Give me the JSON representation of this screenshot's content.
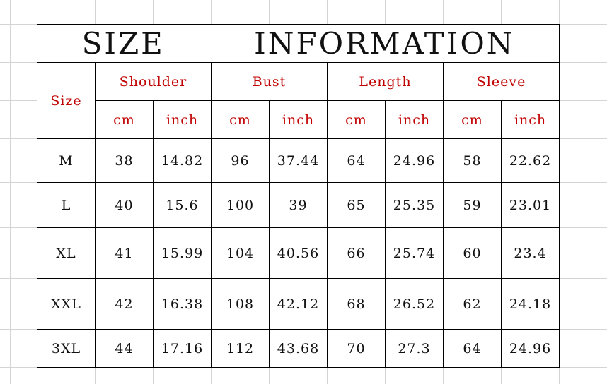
{
  "title": "SIZE INFORMATION",
  "size_header": "Size",
  "groups": [
    "Shoulder",
    "Bust",
    "Length",
    "Sleeve"
  ],
  "units": [
    "cm",
    "inch"
  ],
  "rows": [
    {
      "size": "M",
      "values": [
        "38",
        "14.82",
        "96",
        "37.44",
        "64",
        "24.96",
        "58",
        "22.62"
      ]
    },
    {
      "size": "L",
      "values": [
        "40",
        "15.6",
        "100",
        "39",
        "65",
        "25.35",
        "59",
        "23.01"
      ]
    },
    {
      "size": "XL",
      "values": [
        "41",
        "15.99",
        "104",
        "40.56",
        "66",
        "25.74",
        "60",
        "23.4"
      ]
    },
    {
      "size": "XXL",
      "values": [
        "42",
        "16.38",
        "108",
        "42.12",
        "68",
        "26.52",
        "62",
        "24.18"
      ]
    },
    {
      "size": "3XL",
      "values": [
        "44",
        "17.16",
        "112",
        "43.68",
        "70",
        "27.3",
        "64",
        "24.96"
      ]
    }
  ],
  "colors": {
    "header_text": "#c00000",
    "body_text": "#111111",
    "grid": "#d4d4d4"
  }
}
